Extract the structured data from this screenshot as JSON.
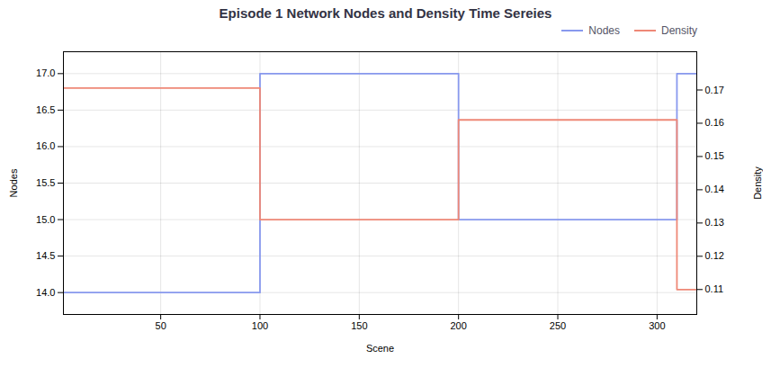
{
  "chart_data": {
    "type": "line",
    "title": "Episode 1 Network Nodes and Density Time Sereies",
    "xlabel": "Scene",
    "ylabel": "Nodes",
    "y2label": "Density",
    "x": [
      1,
      100,
      100,
      200,
      200,
      310,
      310,
      320
    ],
    "series": [
      {
        "name": "Nodes",
        "color": "#8899ee",
        "values": [
          14,
          14,
          17,
          17,
          15,
          15,
          17,
          17
        ]
      },
      {
        "name": "Density",
        "color": "#ee8877",
        "axis": "y2",
        "values": [
          0.1706,
          0.1706,
          0.131,
          0.131,
          0.161,
          0.161,
          0.11,
          0.11
        ]
      }
    ],
    "xlim": [
      1,
      320
    ],
    "xticks": [
      50,
      100,
      150,
      200,
      250,
      300
    ],
    "ylim": [
      13.7,
      17.3
    ],
    "yticks": [
      {
        "value": 14,
        "label": "14.0"
      },
      14.5,
      {
        "value": 15,
        "label": "15.0"
      },
      15.5,
      {
        "value": 16,
        "label": "16.0"
      },
      16.5,
      {
        "value": 17,
        "label": "17.0"
      }
    ],
    "y2lim": [
      0.1025,
      0.1815
    ],
    "y2ticks": [
      0.11,
      0.12,
      0.13,
      0.14,
      0.15,
      0.16,
      0.17
    ],
    "grid": true,
    "legend": "upper right"
  }
}
